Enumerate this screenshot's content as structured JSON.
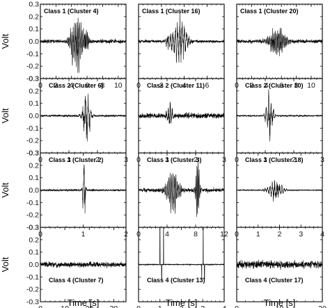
{
  "figure": {
    "ylabel": "Volt",
    "xlabel": "Time [s]"
  },
  "chart_data": [
    {
      "type": "line",
      "title": "Class 1 (Cluster 4)",
      "xlim": [
        0,
        11
      ],
      "xticks": [
        0,
        2,
        4,
        6,
        8,
        10
      ],
      "ylim": [
        -0.3,
        0.3
      ],
      "yticks": [
        -0.3,
        -0.2,
        -0.1,
        0,
        0.1,
        0.2,
        0.3
      ],
      "grid": false,
      "waveform": {
        "kind": "burst",
        "center_s": 4.7,
        "width_s": 1.6,
        "peak_volt": 0.27,
        "noise_volt": 0.015,
        "cycles_per_s": 6,
        "secondary": [
          {
            "center_s": 5.9,
            "width_s": 0.6,
            "peak_volt": 0.12
          }
        ]
      }
    },
    {
      "type": "line",
      "title": "Class 1 (Cluster 16)",
      "xlim": [
        0,
        7.5
      ],
      "xticks": [
        0,
        2,
        4,
        6
      ],
      "ylim": [
        -0.3,
        0.3
      ],
      "yticks": [
        -0.3,
        -0.2,
        -0.1,
        0,
        0.1,
        0.2,
        0.3
      ],
      "grid": false,
      "waveform": {
        "kind": "burst",
        "center_s": 3.6,
        "width_s": 1.2,
        "peak_volt": 0.22,
        "noise_volt": 0.012,
        "cycles_per_s": 5,
        "secondary": [
          {
            "center_s": 2.6,
            "width_s": 0.5,
            "peak_volt": 0.08
          }
        ]
      }
    },
    {
      "type": "line",
      "title": "Class 1 (Cluster 20)",
      "xlim": [
        0,
        11.5
      ],
      "xticks": [
        0,
        2,
        4,
        6,
        8,
        10
      ],
      "ylim": [
        -0.3,
        0.3
      ],
      "yticks": [
        -0.3,
        -0.2,
        -0.1,
        0,
        0.1,
        0.2,
        0.3
      ],
      "grid": false,
      "waveform": {
        "kind": "burst",
        "center_s": 5.5,
        "width_s": 2.4,
        "peak_volt": 0.13,
        "noise_volt": 0.015,
        "cycles_per_s": 6,
        "secondary": []
      }
    },
    {
      "type": "line",
      "title": "Class 2 (Cluster 6)",
      "xlim": [
        0,
        3
      ],
      "xticks": [
        0,
        1,
        2,
        3
      ],
      "ylim": [
        -0.3,
        0.3
      ],
      "yticks": [
        -0.3,
        -0.2,
        -0.1,
        0,
        0.1,
        0.2,
        0.3
      ],
      "grid": false,
      "waveform": {
        "kind": "burst",
        "center_s": 1.62,
        "width_s": 0.28,
        "peak_volt": 0.2,
        "noise_volt": 0.008,
        "cycles_per_s": 10,
        "secondary": []
      }
    },
    {
      "type": "line",
      "title": "Class 2 (Cluster 11)",
      "xlim": [
        0,
        3
      ],
      "xticks": [
        0,
        1,
        2,
        3
      ],
      "ylim": [
        -0.3,
        0.3
      ],
      "yticks": [
        -0.3,
        -0.2,
        -0.1,
        0,
        0.1,
        0.2,
        0.3
      ],
      "grid": false,
      "waveform": {
        "kind": "burst",
        "center_s": 1.1,
        "width_s": 0.22,
        "peak_volt": 0.12,
        "noise_volt": 0.02,
        "cycles_per_s": 14,
        "secondary": []
      }
    },
    {
      "type": "line",
      "title": "Class 2 (Cluster 10)",
      "xlim": [
        0,
        3
      ],
      "xticks": [
        0,
        1,
        2,
        3
      ],
      "ylim": [
        -0.3,
        0.3
      ],
      "yticks": [
        -0.3,
        -0.2,
        -0.1,
        0,
        0.1,
        0.2,
        0.3
      ],
      "grid": false,
      "waveform": {
        "kind": "burst",
        "center_s": 1.15,
        "width_s": 0.25,
        "peak_volt": 0.2,
        "noise_volt": 0.006,
        "cycles_per_s": 12,
        "secondary": []
      }
    },
    {
      "type": "line",
      "title": "Class 3 (Cluster 2)",
      "xlim": [
        0,
        2
      ],
      "xticks": [
        0,
        1,
        2
      ],
      "ylim": [
        -0.3,
        0.3
      ],
      "yticks": [
        -0.3,
        -0.2,
        -0.1,
        0,
        0.1,
        0.2,
        0.3
      ],
      "grid": false,
      "waveform": {
        "kind": "burst",
        "center_s": 1.02,
        "width_s": 0.07,
        "peak_volt": 0.25,
        "noise_volt": 0.008,
        "cycles_per_s": 18,
        "secondary": []
      }
    },
    {
      "type": "line",
      "title": "Class 3 (Cluster 3)",
      "xlim": [
        0,
        12
      ],
      "xticks": [
        0,
        4,
        8,
        12
      ],
      "ylim": [
        -0.3,
        0.3
      ],
      "yticks": [
        -0.3,
        -0.2,
        -0.1,
        0,
        0.1,
        0.2,
        0.3
      ],
      "grid": false,
      "waveform": {
        "kind": "burst",
        "center_s": 4.8,
        "width_s": 1.8,
        "peak_volt": 0.18,
        "noise_volt": 0.015,
        "cycles_per_s": 5,
        "secondary": [
          {
            "center_s": 8.3,
            "width_s": 0.6,
            "peak_volt": 0.28
          }
        ]
      }
    },
    {
      "type": "line",
      "title": "Class 3 (Cluster 18)",
      "xlim": [
        0,
        4
      ],
      "xticks": [
        0,
        1,
        2,
        3,
        4
      ],
      "ylim": [
        -0.3,
        0.3
      ],
      "yticks": [
        -0.3,
        -0.2,
        -0.1,
        0,
        0.1,
        0.2,
        0.3
      ],
      "grid": false,
      "waveform": {
        "kind": "burst",
        "center_s": 1.8,
        "width_s": 0.75,
        "peak_volt": 0.08,
        "noise_volt": 0.004,
        "cycles_per_s": 9,
        "secondary": []
      }
    },
    {
      "type": "line",
      "title": "Class 4 (Cluster 7)",
      "xlim": [
        0,
        35
      ],
      "xticks": [
        0,
        10,
        20,
        30
      ],
      "ylim": [
        -0.3,
        0.3
      ],
      "yticks": [
        -0.3,
        -0.2,
        -0.1,
        0,
        0.1,
        0.2,
        0.3
      ],
      "grid": false,
      "waveform": {
        "kind": "noise",
        "center_s": 0,
        "width_s": 0,
        "peak_volt": 0,
        "noise_volt": 0.02,
        "cycles_per_s": 3,
        "secondary": []
      }
    },
    {
      "type": "line",
      "title": "Class 4 (Cluster 13)",
      "xlim": [
        0,
        4
      ],
      "xticks": [
        0,
        1,
        2,
        3,
        4
      ],
      "ylim": [
        -0.3,
        0.3
      ],
      "yticks": [
        -0.3,
        -0.2,
        -0.1,
        0,
        0.1,
        0.2,
        0.3
      ],
      "grid": false,
      "waveform": {
        "kind": "spikes",
        "center_s": 0,
        "width_s": 0,
        "peak_volt": 0.3,
        "noise_volt": 0.004,
        "cycles_per_s": 0,
        "spikes_s": [
          1.0,
          1.08,
          1.17,
          2.95,
          3.02,
          3.08
        ]
      }
    },
    {
      "type": "line",
      "title": "Class 4 (Cluster 17)",
      "xlim": [
        0,
        20
      ],
      "xticks": [
        0,
        10,
        20
      ],
      "ylim": [
        -0.3,
        0.3
      ],
      "yticks": [
        -0.3,
        -0.2,
        -0.1,
        0,
        0.1,
        0.2,
        0.3
      ],
      "grid": false,
      "waveform": {
        "kind": "noise",
        "center_s": 0,
        "width_s": 0,
        "peak_volt": 0,
        "noise_volt": 0.03,
        "cycles_per_s": 4,
        "secondary": []
      }
    }
  ]
}
